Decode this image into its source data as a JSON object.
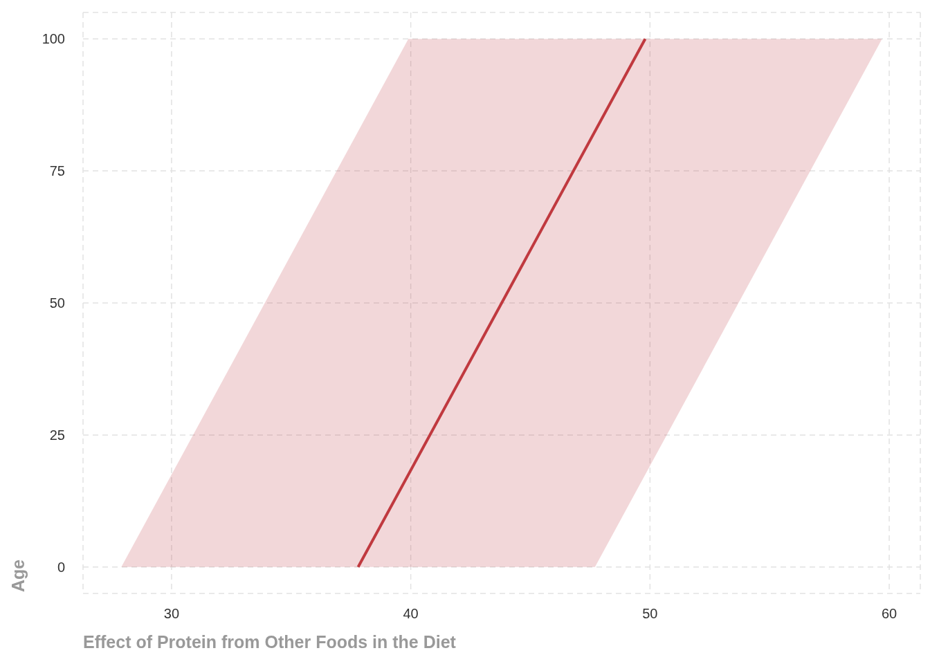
{
  "chart_data": {
    "type": "line",
    "orientation": "horizontal",
    "xlabel": "Effect of Protein from Other Foods in the Diet",
    "ylabel": "Age",
    "series": [
      {
        "color": "#c0393f",
        "x": [
          0,
          100
        ],
        "values": [
          37.8,
          49.8
        ],
        "lower": [
          27.9,
          39.9
        ],
        "upper": [
          47.7,
          59.7
        ]
      }
    ],
    "xlim": [
      26.3,
      61.3
    ],
    "xticks": [
      30,
      40,
      50,
      60
    ],
    "ylim": [
      -5,
      105
    ],
    "yticks": [
      0,
      25,
      50,
      75,
      100
    ],
    "grid": true,
    "line_style": "solid",
    "marker": "none"
  }
}
